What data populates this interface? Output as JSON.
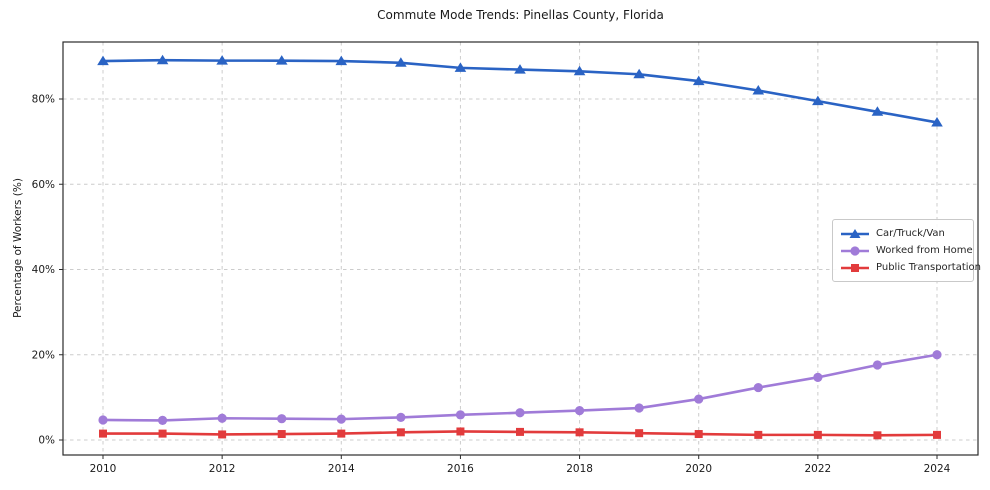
{
  "chart_data": {
    "type": "line",
    "title": "Commute Mode Trends: Pinellas County, Florida",
    "xlabel": "",
    "ylabel": "Percentage of Workers (%)",
    "x": [
      2010,
      2011,
      2012,
      2013,
      2014,
      2015,
      2016,
      2017,
      2018,
      2019,
      2020,
      2021,
      2022,
      2023,
      2024
    ],
    "x_tick_labels": [
      "2010",
      "2012",
      "2014",
      "2016",
      "2018",
      "2020",
      "2022",
      "2024"
    ],
    "x_ticks": [
      2010,
      2012,
      2014,
      2016,
      2018,
      2020,
      2022,
      2024
    ],
    "y_tick_labels": [
      "0%",
      "20%",
      "40%",
      "60%",
      "80%"
    ],
    "y_ticks": [
      0,
      20,
      40,
      60,
      80
    ],
    "xlim": [
      2009.33,
      2024.69
    ],
    "ylim": [
      -3.5,
      93.4
    ],
    "grid": true,
    "grid_style": "dashed",
    "legend_position": "center-right",
    "series": [
      {
        "name": "Car/Truck/Van",
        "color": "#2a63c4",
        "marker": "triangle",
        "values": [
          88.9,
          89.1,
          89.0,
          89.0,
          88.9,
          88.5,
          87.3,
          86.9,
          86.5,
          85.8,
          84.2,
          82.0,
          79.5,
          77.0,
          74.5
        ]
      },
      {
        "name": "Worked from Home",
        "color": "#a07bd8",
        "marker": "circle",
        "values": [
          4.7,
          4.6,
          5.1,
          5.0,
          4.9,
          5.3,
          5.9,
          6.4,
          6.9,
          7.5,
          9.6,
          12.3,
          14.7,
          17.6,
          20.0
        ]
      },
      {
        "name": "Public Transportation",
        "color": "#e23b3c",
        "marker": "square",
        "values": [
          1.5,
          1.5,
          1.3,
          1.4,
          1.5,
          1.8,
          2.0,
          1.9,
          1.8,
          1.6,
          1.4,
          1.2,
          1.2,
          1.1,
          1.2
        ]
      }
    ]
  }
}
